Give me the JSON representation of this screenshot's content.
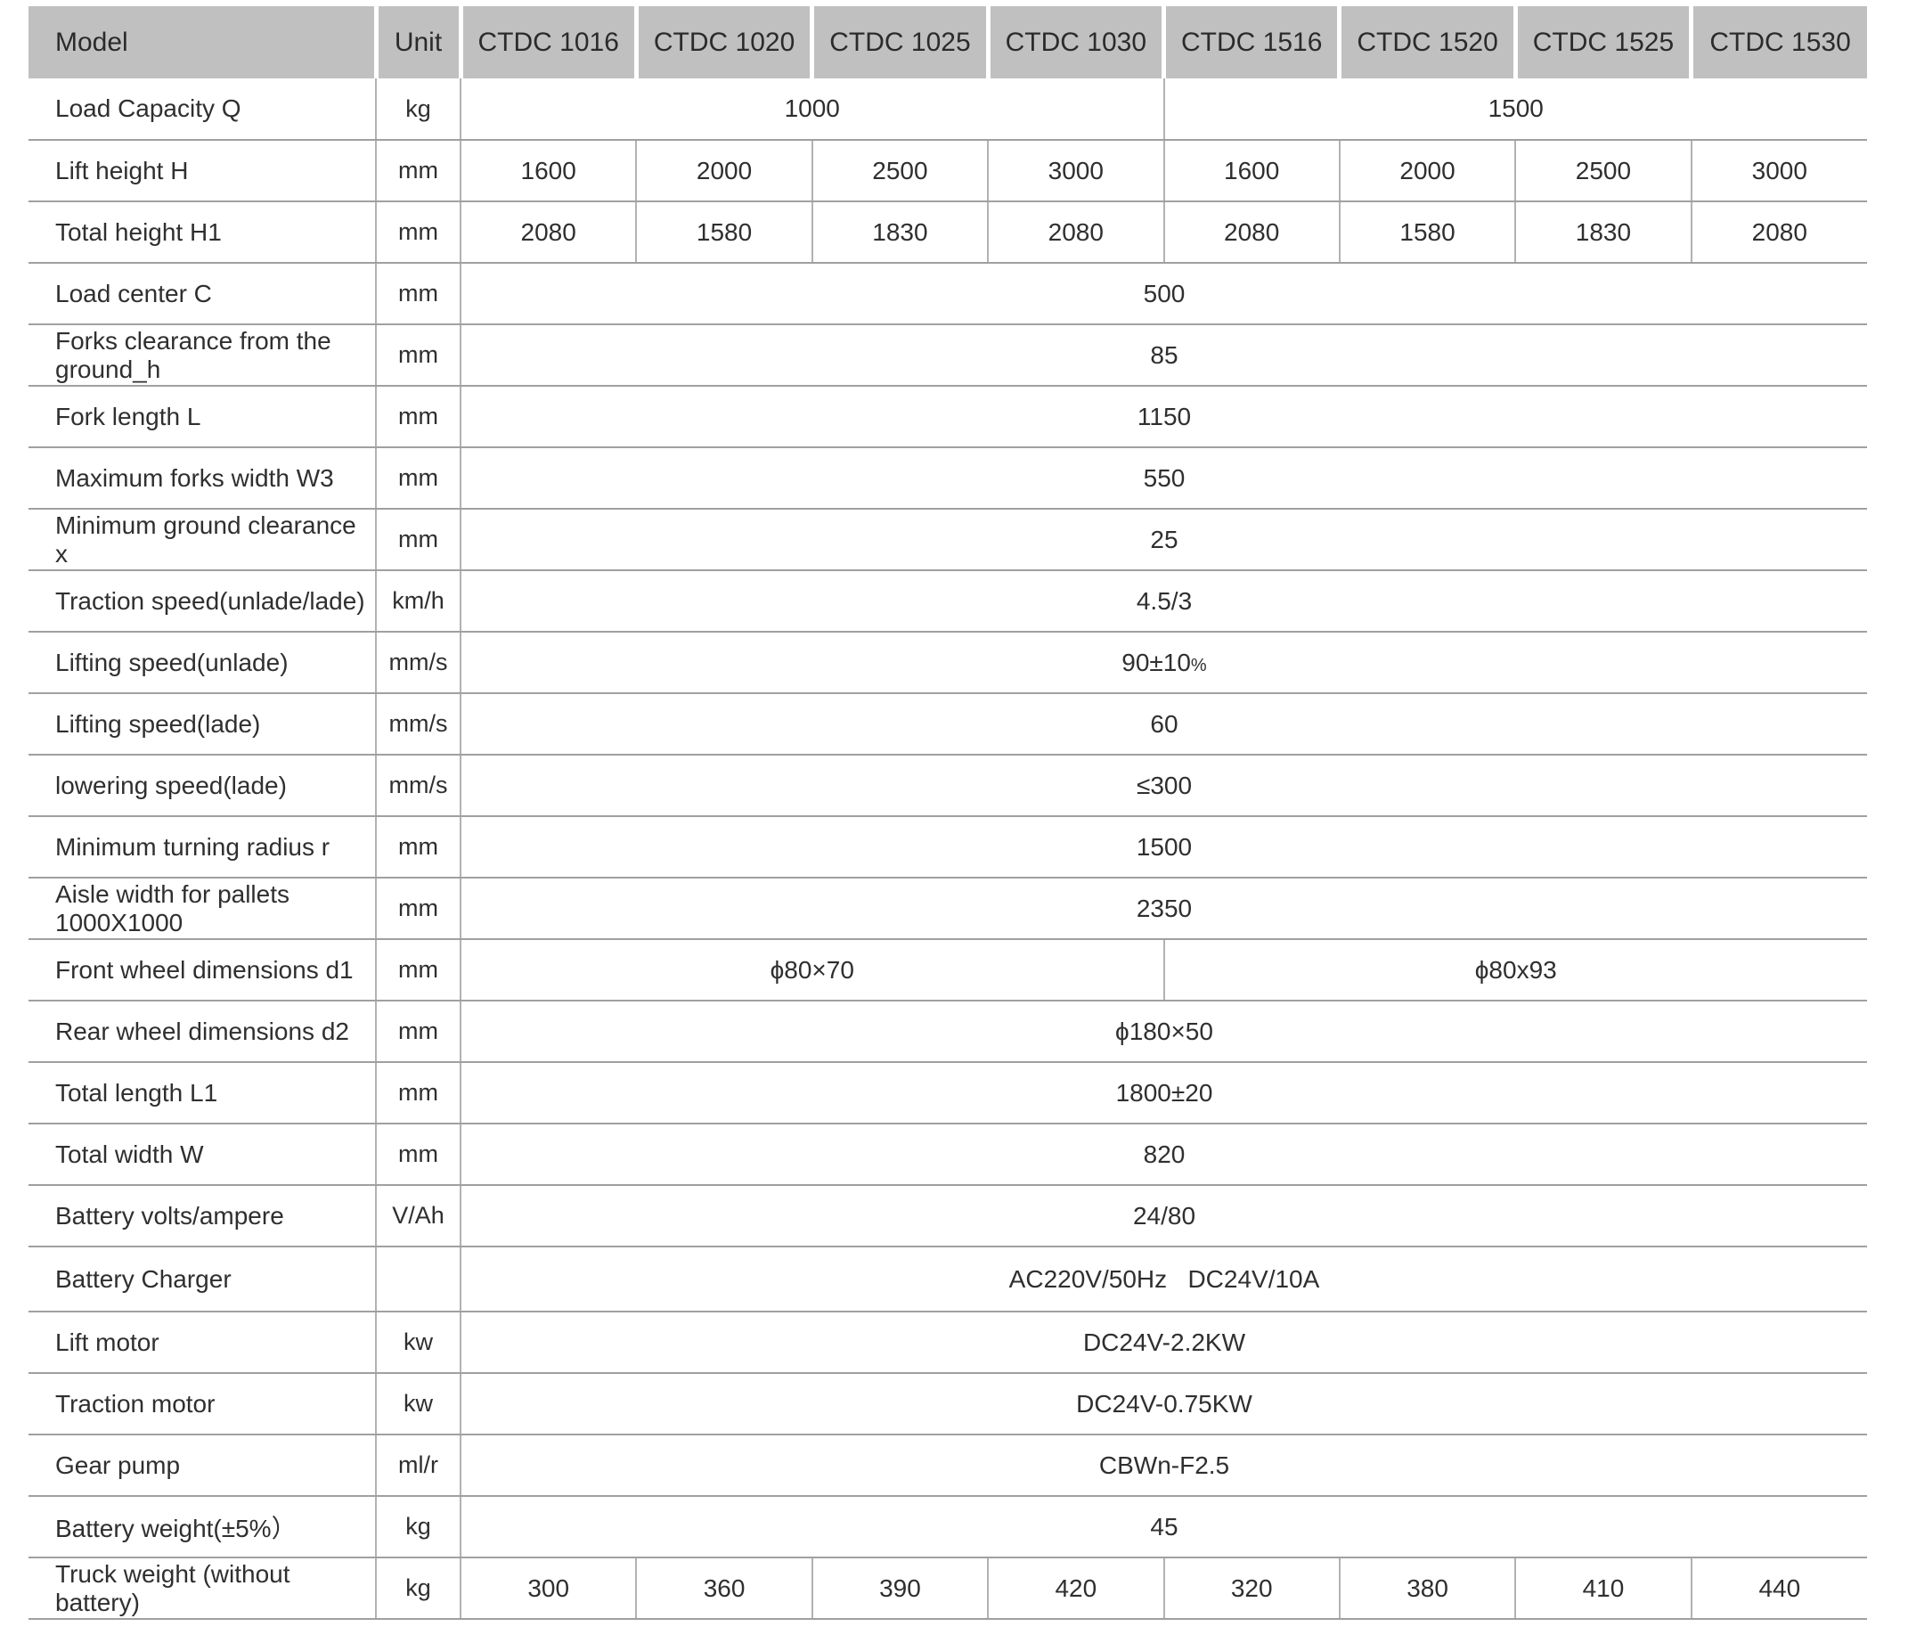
{
  "table": {
    "header": {
      "model_label": "Model",
      "unit_label": "Unit",
      "models": [
        "CTDC 1016",
        "CTDC 1020",
        "CTDC 1025",
        "CTDC 1030",
        "CTDC 1516",
        "CTDC 1520",
        "CTDC 1525",
        "CTDC 1530"
      ]
    },
    "rows": [
      {
        "label": "Load Capacity Q",
        "unit": "kg",
        "cells": [
          {
            "text": "1000",
            "span": 4
          },
          {
            "text": "1500",
            "span": 4
          }
        ]
      },
      {
        "label": "Lift height H",
        "unit": "mm",
        "cells": [
          {
            "text": "1600"
          },
          {
            "text": "2000"
          },
          {
            "text": "2500"
          },
          {
            "text": "3000"
          },
          {
            "text": "1600"
          },
          {
            "text": "2000"
          },
          {
            "text": "2500"
          },
          {
            "text": "3000"
          }
        ]
      },
      {
        "label": "Total height H1",
        "unit": "mm",
        "cells": [
          {
            "text": "2080"
          },
          {
            "text": "1580"
          },
          {
            "text": "1830"
          },
          {
            "text": "2080"
          },
          {
            "text": "2080"
          },
          {
            "text": "1580"
          },
          {
            "text": "1830"
          },
          {
            "text": "2080"
          }
        ]
      },
      {
        "label": "Load center C",
        "unit": "mm",
        "cells": [
          {
            "text": "500",
            "span": 8
          }
        ]
      },
      {
        "label": "Forks clearance from the ground_h",
        "unit": "mm",
        "cells": [
          {
            "text": "85",
            "span": 8
          }
        ]
      },
      {
        "label": "Fork length L",
        "unit": "mm",
        "cells": [
          {
            "text": "1150",
            "span": 8
          }
        ]
      },
      {
        "label": "Maximum forks width W3",
        "unit": "mm",
        "cells": [
          {
            "text": "550",
            "span": 8
          }
        ]
      },
      {
        "label": "Minimum ground clearance x",
        "unit": "mm",
        "cells": [
          {
            "text": "25",
            "span": 8
          }
        ]
      },
      {
        "label": "Traction speed(unlade/lade)",
        "unit": "km/h",
        "cells": [
          {
            "text": "4.5/3",
            "span": 8
          }
        ]
      },
      {
        "label": "Lifting speed(unlade)",
        "unit": "mm/s",
        "cells": [
          {
            "text": "90±10",
            "suffix": "%",
            "span": 8
          }
        ]
      },
      {
        "label": "Lifting speed(lade)",
        "unit": "mm/s",
        "cells": [
          {
            "text": "60",
            "span": 8
          }
        ]
      },
      {
        "label": "lowering speed(lade)",
        "unit": "mm/s",
        "cells": [
          {
            "text": "≤300",
            "span": 8
          }
        ]
      },
      {
        "label": "Minimum turning radius r",
        "unit": "mm",
        "cells": [
          {
            "text": "1500",
            "span": 8
          }
        ]
      },
      {
        "label": "Aisle width for pallets 1000X1000",
        "unit": "mm",
        "cells": [
          {
            "text": "2350",
            "span": 8
          }
        ]
      },
      {
        "label": "Front wheel dimensions d1",
        "unit": "mm",
        "cells": [
          {
            "text": "ϕ80×70",
            "span": 4
          },
          {
            "text": "ϕ80x93",
            "span": 4
          }
        ]
      },
      {
        "label": "Rear wheel dimensions d2",
        "unit": "mm",
        "cells": [
          {
            "text": "ϕ180×50",
            "span": 8
          }
        ]
      },
      {
        "label": "Total length L1",
        "unit": "mm",
        "cells": [
          {
            "text": "1800±20",
            "span": 8
          }
        ]
      },
      {
        "label": "Total width W",
        "unit": "mm",
        "cells": [
          {
            "text": "820",
            "span": 8
          }
        ]
      },
      {
        "label": "Battery volts/ampere",
        "unit": "V/Ah",
        "cells": [
          {
            "text": "24/80",
            "span": 8
          }
        ]
      },
      {
        "label": "Battery Charger",
        "unit": "",
        "tall": true,
        "cells": [
          {
            "text": "AC220V/50Hz   DC24V/10A",
            "span": 8
          }
        ]
      },
      {
        "label": "Lift motor",
        "unit": "kw",
        "cells": [
          {
            "text": "DC24V-2.2KW",
            "span": 8
          }
        ]
      },
      {
        "label": "Traction motor",
        "unit": "kw",
        "cells": [
          {
            "text": "DC24V-0.75KW",
            "span": 8
          }
        ]
      },
      {
        "label": "Gear pump",
        "unit": "ml/r",
        "cells": [
          {
            "text": "CBWn-F2.5",
            "span": 8
          }
        ]
      },
      {
        "label": "Battery weight(±5%）",
        "unit": "kg",
        "cells": [
          {
            "text": "45",
            "span": 8
          }
        ]
      },
      {
        "label": "Truck weight (without battery)",
        "unit": "kg",
        "cells": [
          {
            "text": "300"
          },
          {
            "text": "360"
          },
          {
            "text": "390"
          },
          {
            "text": "420"
          },
          {
            "text": "320"
          },
          {
            "text": "380"
          },
          {
            "text": "410"
          },
          {
            "text": "440"
          }
        ]
      }
    ],
    "colors": {
      "header_bg": "#c1c0c0",
      "grid_horizontal": "#a0a0a0",
      "grid_vertical": "#b2b2b2",
      "text": "#2f2f2f",
      "background": "#ffffff"
    }
  }
}
